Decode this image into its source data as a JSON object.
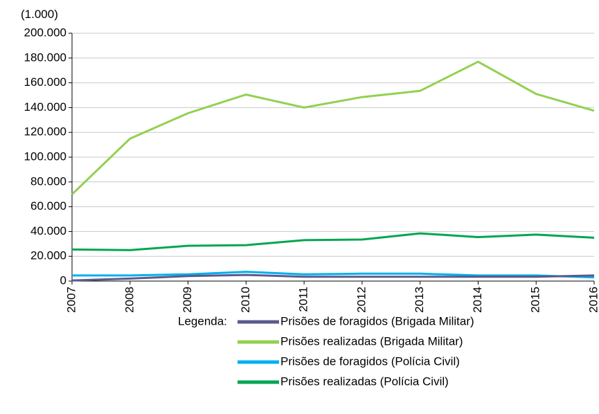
{
  "chart_data": {
    "type": "line",
    "unit_label": "(1.000)",
    "x": [
      "2007",
      "2008",
      "2009",
      "2010",
      "2011",
      "2012",
      "2013",
      "2014",
      "2015",
      "2016"
    ],
    "ylim": [
      0,
      200000
    ],
    "y_ticks": [
      0,
      20000,
      40000,
      60000,
      80000,
      100000,
      120000,
      140000,
      160000,
      180000,
      200000
    ],
    "y_tick_labels": [
      "0",
      "20.000",
      "40.000",
      "60.000",
      "80.000",
      "100.000",
      "120.000",
      "140.000",
      "160.000",
      "180.000",
      "200.000"
    ],
    "grid": true,
    "legend_title": "Legenda:",
    "legend_position": "bottom",
    "series": [
      {
        "name": "Prisões de foragidos (Brigada Militar)",
        "color": "#5b5a8c",
        "values": [
          500,
          2000,
          4000,
          5000,
          3500,
          3500,
          3500,
          3500,
          3500,
          4500
        ]
      },
      {
        "name": "Prisões realizadas (Brigada Militar)",
        "color": "#92d050",
        "values": [
          70000,
          115000,
          135500,
          150500,
          140000,
          148500,
          153500,
          177000,
          151000,
          137500
        ]
      },
      {
        "name": "Prisões de foragidos (Polícia Civil)",
        "color": "#00b0f0",
        "values": [
          4500,
          4500,
          5500,
          7500,
          5500,
          6000,
          6000,
          4500,
          4500,
          3000
        ]
      },
      {
        "name": "Prisões realizadas (Polícia Civil)",
        "color": "#00a650",
        "values": [
          25500,
          25000,
          28500,
          29000,
          33000,
          33500,
          38500,
          35500,
          37500,
          35000
        ]
      }
    ]
  }
}
